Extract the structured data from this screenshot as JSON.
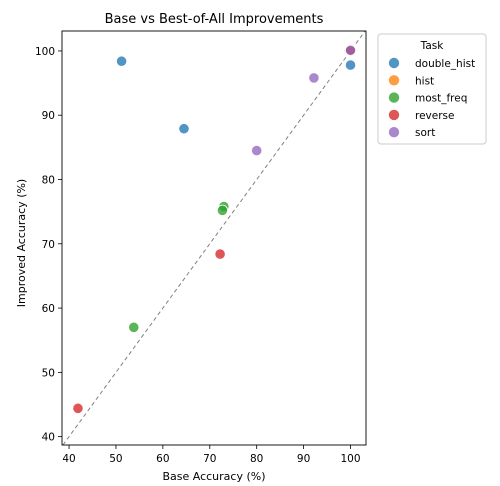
{
  "chart_data": {
    "type": "scatter",
    "title": "Base vs Best-of-All Improvements",
    "xlabel": "Base Accuracy (%)",
    "ylabel": "Improved Accuracy (%)",
    "xlim": [
      38.5,
      103.3
    ],
    "ylim": [
      38.7,
      103.1
    ],
    "xticks": [
      40,
      50,
      60,
      70,
      80,
      90,
      100
    ],
    "yticks": [
      40,
      50,
      60,
      70,
      80,
      90,
      100
    ],
    "grid": false,
    "diagonal_reference": true,
    "legend": {
      "title": "Task",
      "placement": "outside-top-right"
    },
    "series": [
      {
        "name": "double_hist",
        "color": "#1f77b4",
        "points": [
          [
            51.2,
            98.4
          ],
          [
            64.5,
            87.9
          ],
          [
            100.0,
            97.8
          ],
          [
            99.8,
            100.0
          ]
        ]
      },
      {
        "name": "hist",
        "color": "#ff7f0e",
        "points": [
          [
            100.0,
            100.2
          ]
        ]
      },
      {
        "name": "most_freq",
        "color": "#2ca02c",
        "points": [
          [
            73.0,
            75.8
          ],
          [
            72.7,
            75.2
          ],
          [
            53.8,
            57.0
          ]
        ]
      },
      {
        "name": "reverse",
        "color": "#d62728",
        "points": [
          [
            72.2,
            68.4
          ],
          [
            41.9,
            44.4
          ],
          [
            100.0,
            100.0
          ]
        ]
      },
      {
        "name": "sort",
        "color": "#9467bd",
        "points": [
          [
            92.2,
            95.8
          ],
          [
            80.0,
            84.5
          ],
          [
            100.0,
            100.1
          ]
        ]
      }
    ]
  }
}
